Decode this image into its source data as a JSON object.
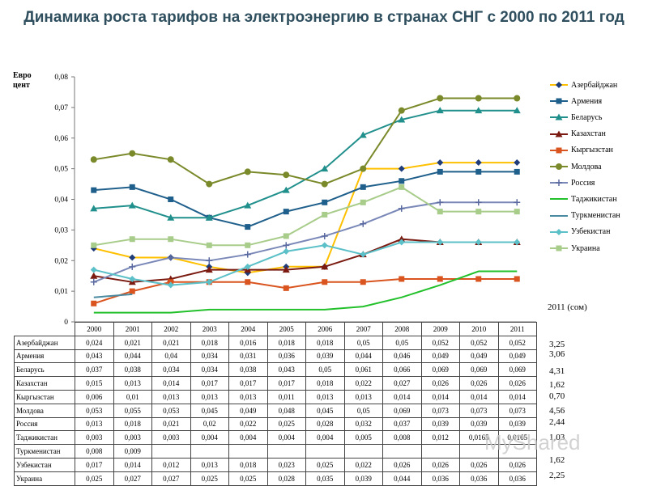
{
  "title": "Динамика роста тарифов на электроэнергию в странах СНГ с 2000 по 2011 год",
  "side_header": "2011 (сом)",
  "side_values": [
    "3,25",
    "3,06",
    "4,31",
    "1,62",
    "0,70",
    "4,56",
    "2,44",
    "1,03",
    "1,62",
    "2,25"
  ],
  "watermark": "MyShared",
  "chart_data": {
    "type": "line",
    "ylabel": "Евро цент",
    "ylim": [
      0,
      0.08
    ],
    "yticks": [
      0,
      0.01,
      0.02,
      0.03,
      0.04,
      0.05,
      0.06,
      0.07,
      0.08
    ],
    "ytick_labels": [
      "0",
      "0,01",
      "0,02",
      "0,03",
      "0,04",
      "0,05",
      "0,06",
      "0,07",
      "0,08"
    ],
    "x": [
      "2000",
      "2001",
      "2002",
      "2003",
      "2004",
      "2005",
      "2006",
      "2007",
      "2008",
      "2009",
      "2010",
      "2011"
    ],
    "legend_position": "right",
    "series": [
      {
        "name": "Азербайджан",
        "color": "#ffc000",
        "marker": "diamond",
        "marker_color": "#1f3d7a",
        "values": [
          0.024,
          0.021,
          0.021,
          0.018,
          0.016,
          0.018,
          0.018,
          0.05,
          0.05,
          0.052,
          0.052,
          0.052
        ],
        "labels": [
          "0,024",
          "0,021",
          "0,021",
          "0,018",
          "0,016",
          "0,018",
          "0,018",
          "0,05",
          "0,05",
          "0,052",
          "0,052",
          "0,052"
        ]
      },
      {
        "name": "Армения",
        "color": "#1f5f8b",
        "marker": "square",
        "marker_color": "#1f5f8b",
        "values": [
          0.043,
          0.044,
          0.04,
          0.034,
          0.031,
          0.036,
          0.039,
          0.044,
          0.046,
          0.049,
          0.049,
          0.049
        ],
        "labels": [
          "0,043",
          "0,044",
          "0,04",
          "0,034",
          "0,031",
          "0,036",
          "0,039",
          "0,044",
          "0,046",
          "0,049",
          "0,049",
          "0,049"
        ]
      },
      {
        "name": "Беларусь",
        "color": "#21908c",
        "marker": "triangle",
        "marker_color": "#21908c",
        "values": [
          0.037,
          0.038,
          0.034,
          0.034,
          0.038,
          0.043,
          0.05,
          0.061,
          0.066,
          0.069,
          0.069,
          0.069
        ],
        "labels": [
          "0,037",
          "0,038",
          "0,034",
          "0,034",
          "0,038",
          "0,043",
          "0,05",
          "0,061",
          "0,066",
          "0,069",
          "0,069",
          "0,069"
        ]
      },
      {
        "name": "Казахстан",
        "color": "#7a1a10",
        "marker": "triangle",
        "marker_color": "#7a1a10",
        "values": [
          0.015,
          0.013,
          0.014,
          0.017,
          0.017,
          0.017,
          0.018,
          0.022,
          0.027,
          0.026,
          0.026,
          0.026
        ],
        "labels": [
          "0,015",
          "0,013",
          "0,014",
          "0,017",
          "0,017",
          "0,017",
          "0,018",
          "0,022",
          "0,027",
          "0,026",
          "0,026",
          "0,026"
        ]
      },
      {
        "name": "Кыргызстан",
        "color": "#d9541e",
        "marker": "square",
        "marker_color": "#d9541e",
        "values": [
          0.006,
          0.01,
          0.013,
          0.013,
          0.013,
          0.011,
          0.013,
          0.013,
          0.014,
          0.014,
          0.014,
          0.014
        ],
        "labels": [
          "0,006",
          "0,01",
          "0,013",
          "0,013",
          "0,013",
          "0,011",
          "0,013",
          "0,013",
          "0,014",
          "0,014",
          "0,014",
          "0,014"
        ]
      },
      {
        "name": "Молдова",
        "color": "#7a8a2a",
        "marker": "circle",
        "marker_color": "#7a8a2a",
        "values": [
          0.053,
          0.055,
          0.053,
          0.045,
          0.049,
          0.048,
          0.045,
          0.05,
          0.069,
          0.073,
          0.073,
          0.073
        ],
        "labels": [
          "0,053",
          "0,055",
          "0,053",
          "0,045",
          "0,049",
          "0,048",
          "0,045",
          "0,05",
          "0,069",
          "0,073",
          "0,073",
          "0,073"
        ]
      },
      {
        "name": "Россия",
        "color": "#7a88b8",
        "marker": "plus",
        "marker_color": "#5a6aa0",
        "values": [
          0.013,
          0.018,
          0.021,
          0.02,
          0.022,
          0.025,
          0.028,
          0.032,
          0.037,
          0.039,
          0.039,
          0.039
        ],
        "labels": [
          "0,013",
          "0,018",
          "0,021",
          "0,02",
          "0,022",
          "0,025",
          "0,028",
          "0,032",
          "0,037",
          "0,039",
          "0,039",
          "0,039"
        ]
      },
      {
        "name": "Таджикистан",
        "color": "#22c02a",
        "marker": "none",
        "marker_color": "#22c02a",
        "values": [
          0.003,
          0.003,
          0.003,
          0.004,
          0.004,
          0.004,
          0.004,
          0.005,
          0.008,
          0.012,
          0.0165,
          0.0165
        ],
        "labels": [
          "0,003",
          "0,003",
          "0,003",
          "0,004",
          "0,004",
          "0,004",
          "0,004",
          "0,005",
          "0,008",
          "0,012",
          "0,0165",
          "0,0165"
        ]
      },
      {
        "name": "Туркменистан",
        "color": "#4a8aa0",
        "marker": "none",
        "marker_color": "#4a8aa0",
        "values": [
          0.008,
          0.009,
          null,
          null,
          null,
          null,
          null,
          null,
          null,
          null,
          null,
          null
        ],
        "labels": [
          "0,008",
          "0,009",
          "",
          "",
          "",
          "",
          "",
          "",
          "",
          "",
          "",
          ""
        ]
      },
      {
        "name": "Узбекистан",
        "color": "#5cc0c8",
        "marker": "diamond",
        "marker_color": "#5cc0c8",
        "values": [
          0.017,
          0.014,
          0.012,
          0.013,
          0.018,
          0.023,
          0.025,
          0.022,
          0.026,
          0.026,
          0.026,
          0.026
        ],
        "labels": [
          "0,017",
          "0,014",
          "0,012",
          "0,013",
          "0,018",
          "0,023",
          "0,025",
          "0,022",
          "0,026",
          "0,026",
          "0,026",
          "0,026"
        ]
      },
      {
        "name": "Украина",
        "color": "#a8cc8a",
        "marker": "square",
        "marker_color": "#a8cc8a",
        "values": [
          0.025,
          0.027,
          0.027,
          0.025,
          0.025,
          0.028,
          0.035,
          0.039,
          0.044,
          0.036,
          0.036,
          0.036
        ],
        "labels": [
          "0,025",
          "0,027",
          "0,027",
          "0,025",
          "0,025",
          "0,028",
          "0,035",
          "0,039",
          "0,044",
          "0,036",
          "0,036",
          "0,036"
        ]
      }
    ]
  }
}
